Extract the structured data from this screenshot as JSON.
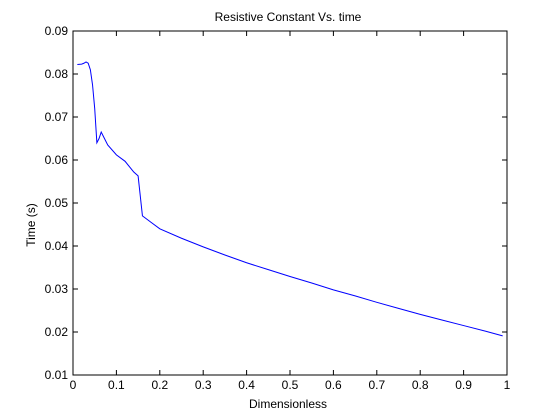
{
  "chart_data": {
    "type": "line",
    "title": "Resistive Constant Vs. time",
    "xlabel": "Dimensionless",
    "ylabel": "Time (s)",
    "xlim": [
      0,
      1
    ],
    "ylim": [
      0.01,
      0.09
    ],
    "x_ticks": [
      "0",
      "0.1",
      "0.2",
      "0.3",
      "0.4",
      "0.5",
      "0.6",
      "0.7",
      "0.8",
      "0.9",
      "1"
    ],
    "y_ticks": [
      "0.01",
      "0.02",
      "0.03",
      "0.04",
      "0.05",
      "0.06",
      "0.07",
      "0.08",
      "0.09"
    ],
    "grid": false,
    "series": [
      {
        "color": "#0000ff",
        "x": [
          0.01,
          0.02,
          0.025,
          0.03,
          0.035,
          0.04,
          0.045,
          0.05,
          0.055,
          0.06,
          0.065,
          0.07,
          0.08,
          0.1,
          0.12,
          0.14,
          0.15,
          0.16,
          0.18,
          0.2,
          0.25,
          0.3,
          0.35,
          0.4,
          0.45,
          0.5,
          0.55,
          0.6,
          0.65,
          0.7,
          0.75,
          0.8,
          0.85,
          0.9,
          0.95,
          0.99
        ],
        "y": [
          0.0822,
          0.0823,
          0.0825,
          0.0828,
          0.0825,
          0.081,
          0.0775,
          0.072,
          0.064,
          0.065,
          0.0665,
          0.0655,
          0.0635,
          0.0612,
          0.0597,
          0.0572,
          0.0563,
          0.047,
          0.0455,
          0.044,
          0.0418,
          0.0398,
          0.0379,
          0.0361,
          0.0345,
          0.0329,
          0.0314,
          0.0298,
          0.0284,
          0.0269,
          0.0255,
          0.0241,
          0.0228,
          0.0215,
          0.0202,
          0.0191
        ]
      }
    ]
  }
}
